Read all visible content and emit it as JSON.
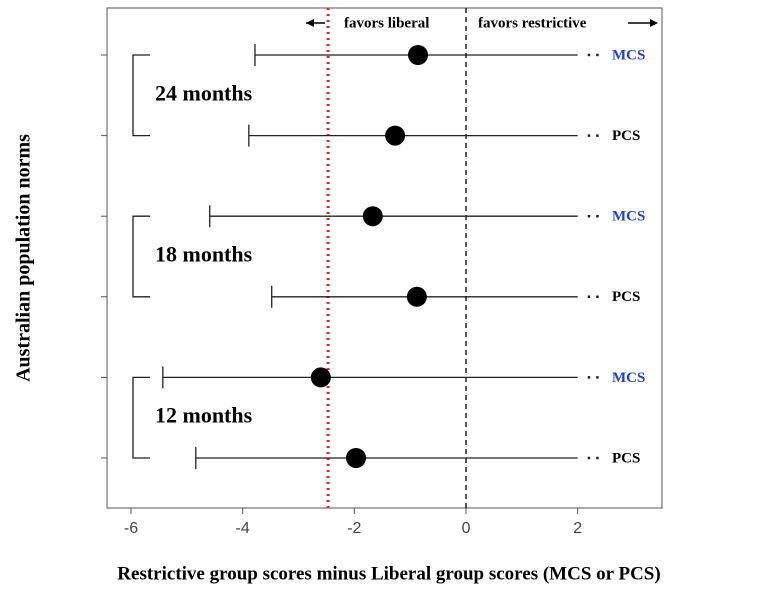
{
  "chart_data": {
    "type": "forest",
    "x_label": "Restrictive group scores minus Liberal group scores (MCS or PCS)",
    "y_label": "Australian population norms",
    "annotations": [
      "favors liberal",
      "favors restrictive"
    ],
    "groups": [
      "24 months",
      "18 months",
      "12 months"
    ],
    "categories": [
      "MCS",
      "PCS",
      "MCS",
      "PCS",
      "MCS",
      "PCS"
    ],
    "label_colors": [
      "#1f3fd6",
      "#000000",
      "#1f3fd6",
      "#000000",
      "#1f3fd6",
      "#000000"
    ],
    "values": [
      -0.86,
      -1.27,
      -1.67,
      -0.88,
      -2.6,
      -1.97
    ],
    "lower": [
      -3.78,
      -3.89,
      -4.59,
      -3.48,
      -5.43,
      -4.84
    ],
    "upper": [
      2,
      2,
      2,
      2,
      2,
      2
    ],
    "xlim": [
      -6.43,
      3.51
    ],
    "xticks": [
      -6,
      -4,
      -2,
      0,
      2
    ],
    "reference_lines": [
      {
        "value": -2.47,
        "color": "#e8231f",
        "style": "dotted"
      },
      {
        "value": 0,
        "color": "#000000",
        "style": "dashed"
      }
    ]
  }
}
